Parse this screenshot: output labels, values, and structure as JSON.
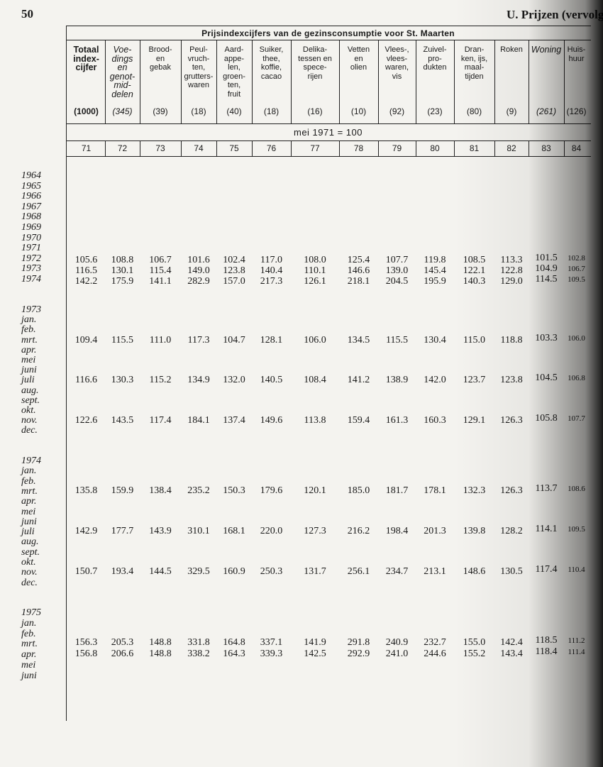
{
  "header": {
    "page_number": "50",
    "running_title": "U. Prijzen (vervolg"
  },
  "table": {
    "title": "Prijsindexcijfers van de gezinsconsumptie voor St. Maarten",
    "base": "mei 1971 = 100",
    "columns": [
      {
        "label": "Totaal\nindex-\ncijfer",
        "emphasis": "bold",
        "weight": "(1000)",
        "number": "71"
      },
      {
        "label": "Voe-\ndings\nen\ngenot-\nmid-\ndelen",
        "emphasis": "italic",
        "weight": "(345)",
        "number": "72"
      },
      {
        "label": "Brood-\nen\ngebak",
        "emphasis": "normal",
        "weight": "(39)",
        "number": "73"
      },
      {
        "label": "Peul-\nvruch-\nten,\ngrutters-\nwaren",
        "emphasis": "normal",
        "weight": "(18)",
        "number": "74"
      },
      {
        "label": "Aard-\nappe-\nlen,\ngroen-\nten,\nfruit",
        "emphasis": "normal",
        "weight": "(40)",
        "number": "75"
      },
      {
        "label": "Suiker,\nthee,\nkoffie,\ncacao",
        "emphasis": "normal",
        "weight": "(18)",
        "number": "76"
      },
      {
        "label": "Delika-\ntessen en\nspece-\nrijen",
        "emphasis": "normal",
        "weight": "(16)",
        "number": "77"
      },
      {
        "label": "Vetten\nen\nolien",
        "emphasis": "normal",
        "weight": "(10)",
        "number": "78"
      },
      {
        "label": "Vlees-,\nvlees-\nwaren,\nvis",
        "emphasis": "normal",
        "weight": "(92)",
        "number": "79"
      },
      {
        "label": "Zuivel-\npro-\ndukten",
        "emphasis": "normal",
        "weight": "(23)",
        "number": "80"
      },
      {
        "label": "Dran-\nken, ijs,\nmaal-\ntijden",
        "emphasis": "normal",
        "weight": "(80)",
        "number": "81"
      },
      {
        "label": "Roken",
        "emphasis": "normal",
        "weight": "(9)",
        "number": "82"
      },
      {
        "label": "Woning",
        "emphasis": "italic",
        "weight": "(261)",
        "number": "83"
      },
      {
        "label": "Huis-\nhuur",
        "emphasis": "normal",
        "weight": "(126)",
        "number": "84"
      }
    ],
    "sections": [
      {
        "labels": [
          "1964",
          "1965",
          "1966",
          "1967",
          "1968",
          "1969",
          "1970",
          "1971",
          "1972",
          "1973",
          "1974"
        ],
        "rows": [
          [
            "105.6",
            "108.8",
            "106.7",
            "101.6",
            "102.4",
            "117.0",
            "108.0",
            "125.4",
            "107.7",
            "119.8",
            "108.5",
            "113.3",
            "101.5",
            "102.8"
          ],
          [
            "116.5",
            "130.1",
            "115.4",
            "149.0",
            "123.8",
            "140.4",
            "110.1",
            "146.6",
            "139.0",
            "145.4",
            "122.1",
            "122.8",
            "104.9",
            "106.7"
          ],
          [
            "142.2",
            "175.9",
            "141.1",
            "282.9",
            "157.0",
            "217.3",
            "126.1",
            "218.1",
            "204.5",
            "195.9",
            "140.3",
            "129.0",
            "114.5",
            "109.5"
          ]
        ]
      },
      {
        "labels": [
          "1973",
          "jan.",
          "feb.",
          "mrt.",
          "apr.",
          "mei",
          "juni",
          "juli",
          "aug.",
          "sept.",
          "okt.",
          "nov.",
          "dec."
        ],
        "rows": [
          [
            "109.4",
            "115.5",
            "111.0",
            "117.3",
            "104.7",
            "128.1",
            "106.0",
            "134.5",
            "115.5",
            "130.4",
            "115.0",
            "118.8",
            "103.3",
            "106.0"
          ],
          [
            "116.6",
            "130.3",
            "115.2",
            "134.9",
            "132.0",
            "140.5",
            "108.4",
            "141.2",
            "138.9",
            "142.0",
            "123.7",
            "123.8",
            "104.5",
            "106.8"
          ],
          [
            "122.6",
            "143.5",
            "117.4",
            "184.1",
            "137.4",
            "149.6",
            "113.8",
            "159.4",
            "161.3",
            "160.3",
            "129.1",
            "126.3",
            "105.8",
            "107.7"
          ]
        ]
      },
      {
        "labels": [
          "1974",
          "jan.",
          "feb.",
          "mrt.",
          "apr.",
          "mei",
          "juni",
          "juli",
          "aug.",
          "sept.",
          "okt.",
          "nov.",
          "dec."
        ],
        "rows": [
          [
            "135.8",
            "159.9",
            "138.4",
            "235.2",
            "150.3",
            "179.6",
            "120.1",
            "185.0",
            "181.7",
            "178.1",
            "132.3",
            "126.3",
            "113.7",
            "108.6"
          ],
          [
            "142.9",
            "177.7",
            "143.9",
            "310.1",
            "168.1",
            "220.0",
            "127.3",
            "216.2",
            "198.4",
            "201.3",
            "139.8",
            "128.2",
            "114.1",
            "109.5"
          ],
          [
            "150.7",
            "193.4",
            "144.5",
            "329.5",
            "160.9",
            "250.3",
            "131.7",
            "256.1",
            "234.7",
            "213.1",
            "148.6",
            "130.5",
            "117.4",
            "110.4"
          ]
        ]
      },
      {
        "labels": [
          "1975",
          "jan.",
          "feb.",
          "mrt.",
          "apr.",
          "mei",
          "juni"
        ],
        "rows": [
          [
            "156.3",
            "205.3",
            "148.8",
            "331.8",
            "164.8",
            "337.1",
            "141.9",
            "291.8",
            "240.9",
            "232.7",
            "155.0",
            "142.4",
            "118.5",
            "111.2"
          ],
          [
            "156.8",
            "206.6",
            "148.8",
            "338.2",
            "164.3",
            "339.3",
            "142.5",
            "292.9",
            "241.0",
            "244.6",
            "155.2",
            "143.4",
            "118.4",
            "111.4"
          ]
        ]
      }
    ]
  }
}
